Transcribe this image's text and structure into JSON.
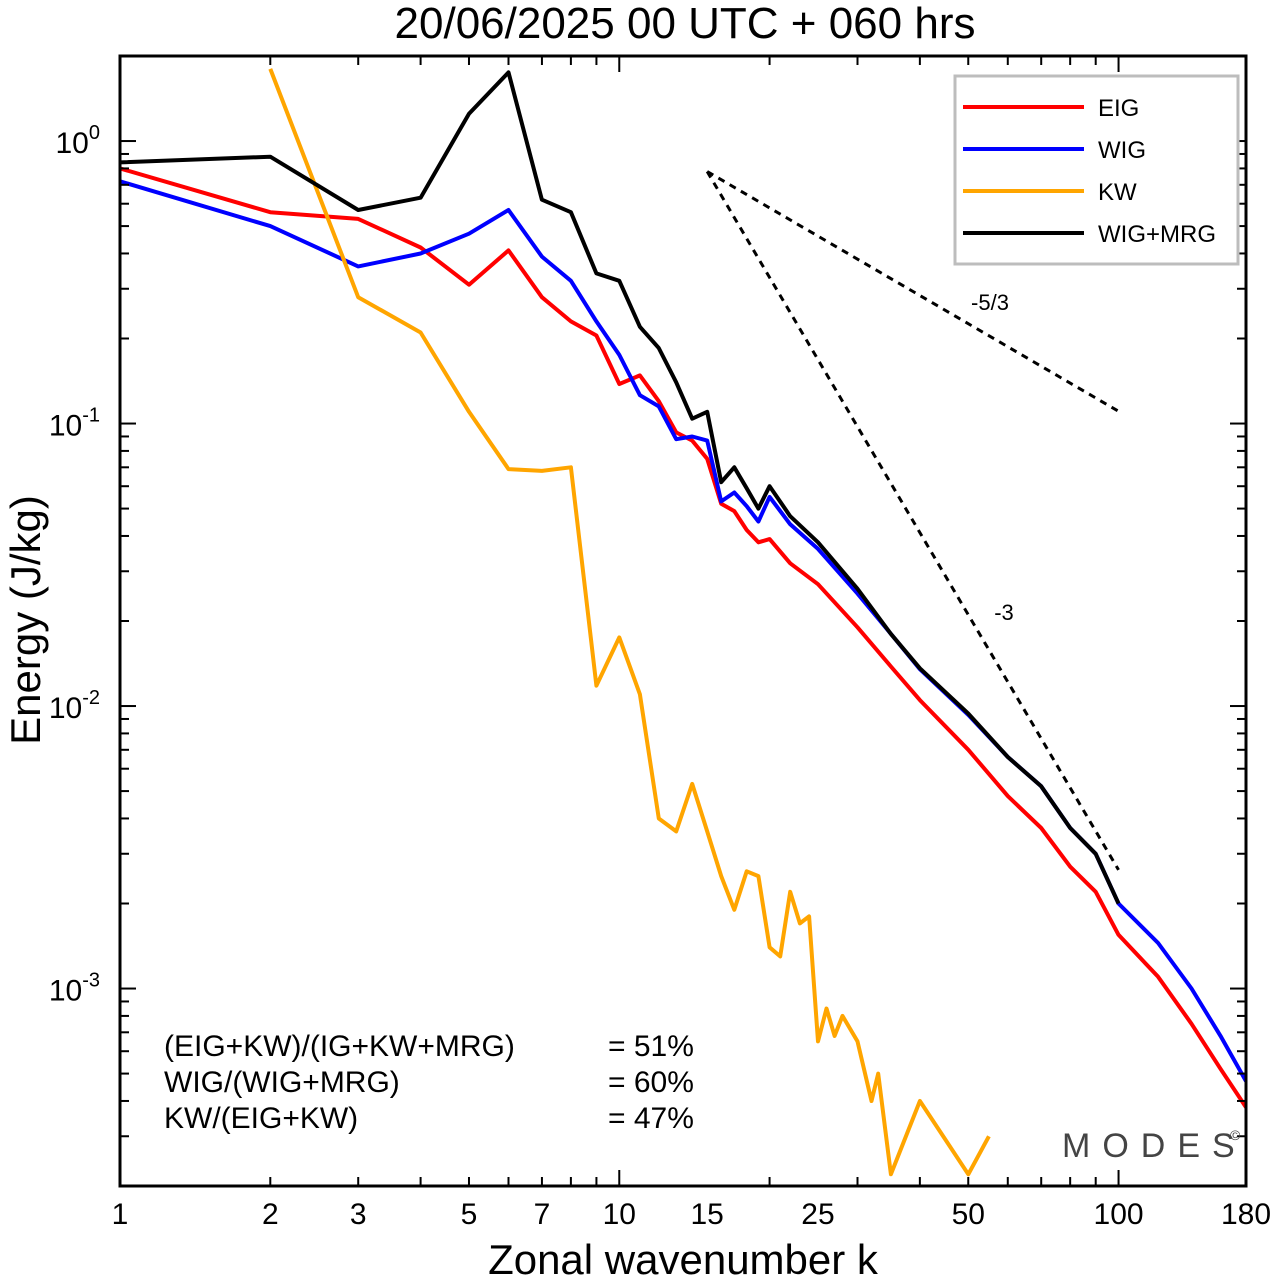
{
  "chart_data": {
    "type": "line",
    "title": "20/06/2025  00 UTC  + 060 hrs",
    "xlabel": "Zonal wavenumber k",
    "ylabel": "Energy (J/kg)",
    "x_scale": "log",
    "y_scale": "log",
    "xlim": [
      1,
      180
    ],
    "ylim": [
      0.0002,
      2
    ],
    "x_ticks": [
      1,
      2,
      3,
      5,
      7,
      10,
      15,
      25,
      50,
      100,
      180
    ],
    "x_tick_labels": [
      "1",
      "2",
      "3",
      "5",
      "7",
      "10",
      "15",
      "25",
      "50",
      "100",
      "180"
    ],
    "y_ticks": [
      0.001,
      0.01,
      0.1,
      1
    ],
    "y_tick_labels": [
      {
        "base": "10",
        "exp": "-3"
      },
      {
        "base": "10",
        "exp": "-2"
      },
      {
        "base": "10",
        "exp": "-1"
      },
      {
        "base": "10",
        "exp": "0"
      }
    ],
    "grid": false,
    "legend_position": "top-right",
    "series": [
      {
        "name": "EIG",
        "color": "#ff0000",
        "x": [
          1,
          2,
          3,
          4,
          5,
          6,
          7,
          8,
          9,
          10,
          11,
          12,
          13,
          14,
          15,
          16,
          17,
          18,
          19,
          20,
          22,
          25,
          30,
          35,
          40,
          50,
          60,
          70,
          80,
          90,
          100,
          120,
          140,
          160,
          180
        ],
        "y": [
          0.8,
          0.56,
          0.53,
          0.42,
          0.31,
          0.41,
          0.28,
          0.23,
          0.205,
          0.138,
          0.148,
          0.12,
          0.093,
          0.087,
          0.075,
          0.052,
          0.049,
          0.042,
          0.038,
          0.039,
          0.032,
          0.027,
          0.019,
          0.0138,
          0.0105,
          0.007,
          0.0048,
          0.0037,
          0.0027,
          0.0022,
          0.00155,
          0.0011,
          0.00075,
          0.00052,
          0.00038
        ]
      },
      {
        "name": "WIG",
        "color": "#0000ff",
        "x": [
          1,
          2,
          3,
          4,
          5,
          6,
          7,
          8,
          9,
          10,
          11,
          12,
          13,
          14,
          15,
          16,
          17,
          18,
          19,
          20,
          22,
          25,
          30,
          35,
          40,
          50,
          60,
          70,
          80,
          90,
          100,
          120,
          140,
          160,
          180
        ],
        "y": [
          0.72,
          0.5,
          0.36,
          0.4,
          0.47,
          0.57,
          0.39,
          0.32,
          0.23,
          0.175,
          0.126,
          0.115,
          0.088,
          0.09,
          0.087,
          0.053,
          0.057,
          0.051,
          0.045,
          0.055,
          0.044,
          0.036,
          0.025,
          0.018,
          0.0135,
          0.0093,
          0.0066,
          0.0052,
          0.0037,
          0.003,
          0.002,
          0.00145,
          0.001,
          0.00068,
          0.00047
        ]
      },
      {
        "name": "KW",
        "color": "#ffa500",
        "x": [
          2,
          3,
          4,
          5,
          6,
          7,
          8,
          9,
          10,
          11,
          12,
          13,
          14,
          15,
          16,
          17,
          18,
          19,
          20,
          21,
          22,
          23,
          24,
          25,
          26,
          27,
          28,
          30,
          32,
          33,
          35,
          40,
          50,
          55
        ],
        "y": [
          1.8,
          0.28,
          0.21,
          0.11,
          0.069,
          0.068,
          0.07,
          0.0118,
          0.0175,
          0.011,
          0.004,
          0.0036,
          0.0053,
          0.0036,
          0.0025,
          0.0019,
          0.0026,
          0.0025,
          0.0014,
          0.0013,
          0.0022,
          0.0017,
          0.0018,
          0.00065,
          0.00085,
          0.00068,
          0.0008,
          0.00065,
          0.0004,
          0.0005,
          0.00022,
          0.0004,
          0.00022,
          0.0003
        ]
      },
      {
        "name": "WIG+MRG",
        "color": "#000000",
        "x": [
          1,
          2,
          3,
          4,
          5,
          6,
          7,
          8,
          9,
          10,
          11,
          12,
          13,
          14,
          15,
          16,
          17,
          18,
          19,
          20,
          22,
          25,
          30,
          35,
          40,
          50,
          60,
          70,
          80,
          90,
          100
        ],
        "y": [
          0.84,
          0.88,
          0.57,
          0.63,
          1.25,
          1.75,
          0.62,
          0.56,
          0.34,
          0.32,
          0.22,
          0.185,
          0.14,
          0.104,
          0.11,
          0.062,
          0.07,
          0.059,
          0.05,
          0.06,
          0.047,
          0.038,
          0.026,
          0.018,
          0.0136,
          0.0094,
          0.0066,
          0.0052,
          0.0037,
          0.003,
          0.002
        ]
      }
    ],
    "annotations": {
      "slope_lines": [
        {
          "label": "-5/3",
          "slope": -1.6667,
          "x_start": 15,
          "y_start": 0.78,
          "x_end": 100,
          "y_end": 0.1105
        },
        {
          "label": "-3",
          "slope": -3,
          "x_start": 15,
          "y_start": 0.78,
          "x_end": 100,
          "y_end": 0.00263
        }
      ],
      "ratios": [
        {
          "label": "(EIG+KW)/(IG+KW+MRG)",
          "value": "= 51%"
        },
        {
          "label": "WIG/(WIG+MRG)",
          "value": "= 60%"
        },
        {
          "label": "KW/(EIG+KW)",
          "value": "= 47%"
        }
      ],
      "watermark": "MODES",
      "copyright_symbol": "©"
    }
  }
}
